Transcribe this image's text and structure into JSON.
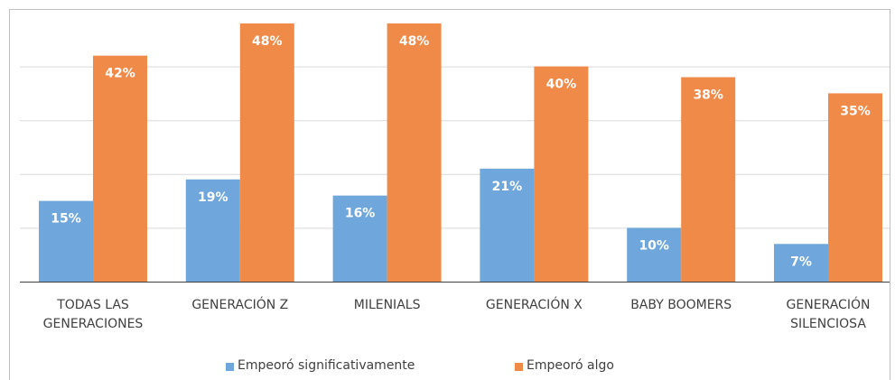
{
  "chart_data": {
    "type": "bar",
    "categories": [
      "TODAS LAS GENERACIONES",
      "GENERACIÓN Z",
      "MILENIALS",
      "GENERACIÓN X",
      "BABY BOOMERS",
      "GENERACIÓN SILENCIOSA"
    ],
    "series": [
      {
        "name": "Empeoró significativamente",
        "color": "#6fa6db",
        "values": [
          15,
          19,
          16,
          21,
          10,
          7
        ],
        "value_labels": [
          "15%",
          "19%",
          "16%",
          "21%",
          "10%",
          "7%"
        ]
      },
      {
        "name": "Empeoró algo",
        "color": "#ef8a48",
        "values": [
          42,
          48,
          48,
          40,
          38,
          35
        ],
        "value_labels": [
          "42%",
          "48%",
          "48%",
          "40%",
          "38%",
          "35%"
        ]
      }
    ],
    "ylim": [
      0,
      50
    ],
    "yticks": [
      0,
      10,
      20,
      30,
      40,
      50
    ],
    "grid": true,
    "legend": "bottom"
  }
}
